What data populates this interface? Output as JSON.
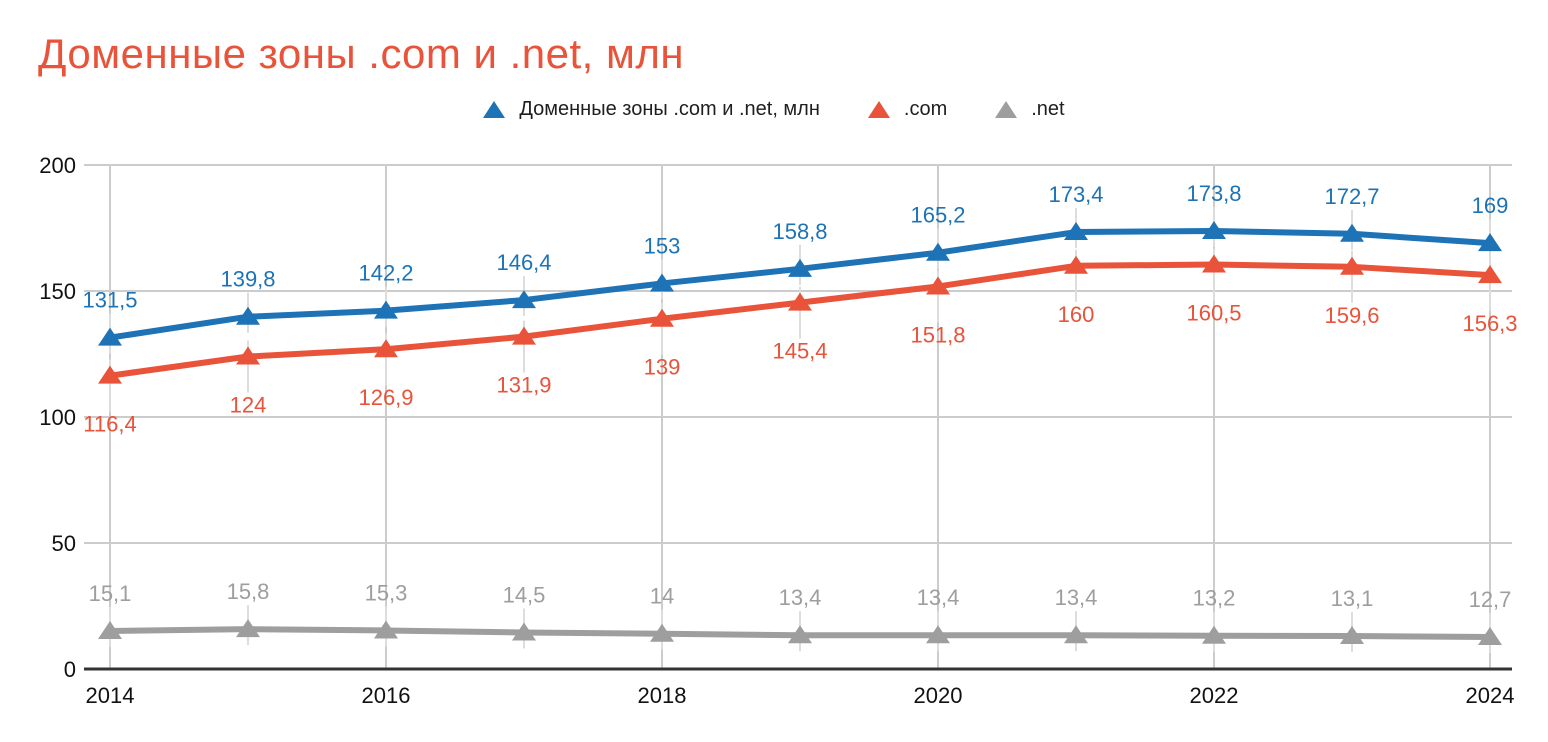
{
  "title": "Доменные зоны .com и .net, млн",
  "legend": [
    {
      "label": "Доменные зоны .com и .net, млн",
      "color": "#1d73b5"
    },
    {
      "label": ".com",
      "color": "#e8533a"
    },
    {
      "label": ".net",
      "color": "#9e9e9e"
    }
  ],
  "colors": {
    "title": "#e8533a",
    "gridline": "#cccccc",
    "leader_line": "#dddddd",
    "axis_line": "#333333",
    "tick_text": "#111111",
    "legend_text": "#1f1f1f",
    "background": "#ffffff"
  },
  "chart_data": {
    "type": "line",
    "title": "Доменные зоны .com и .net, млн",
    "x": [
      2014,
      2015,
      2016,
      2017,
      2018,
      2019,
      2020,
      2021,
      2022,
      2023,
      2024
    ],
    "x_tick_values": [
      2014,
      2016,
      2018,
      2020,
      2022,
      2024
    ],
    "x_tick_labels": [
      "2014",
      "2016",
      "2018",
      "2020",
      "2022",
      "2024"
    ],
    "y_tick_values": [
      0,
      50,
      100,
      150,
      200
    ],
    "y_tick_labels": [
      "0",
      "50",
      "100",
      "150",
      "200"
    ],
    "ylim": [
      0,
      200
    ],
    "grid": true,
    "legend_position": "top",
    "marker": "triangle-up",
    "series": [
      {
        "id": "total",
        "name": "Доменные зоны .com и .net, млн",
        "color": "#1d73b5",
        "label_position": "above",
        "values": [
          131.5,
          139.8,
          142.2,
          146.4,
          153,
          158.8,
          165.2,
          173.4,
          173.8,
          172.7,
          169
        ],
        "labels": [
          "131,5",
          "139,8",
          "142,2",
          "146,4",
          "153",
          "158,8",
          "165,2",
          "173,4",
          "173,8",
          "172,7",
          "169"
        ]
      },
      {
        "id": "com",
        "name": ".com",
        "color": "#e8533a",
        "label_position": "below",
        "values": [
          116.4,
          124,
          126.9,
          131.9,
          139,
          145.4,
          151.8,
          160,
          160.5,
          159.6,
          156.3
        ],
        "labels": [
          "116,4",
          "124",
          "126,9",
          "131,9",
          "139",
          "145,4",
          "151,8",
          "160",
          "160,5",
          "159,6",
          "156,3"
        ]
      },
      {
        "id": "net",
        "name": ".net",
        "color": "#9e9e9e",
        "label_position": "above",
        "values": [
          15.1,
          15.8,
          15.3,
          14.5,
          14,
          13.4,
          13.4,
          13.4,
          13.2,
          13.1,
          12.7
        ],
        "labels": [
          "15,1",
          "15,8",
          "15,3",
          "14,5",
          "14",
          "13,4",
          "13,4",
          "13,4",
          "13,2",
          "13,1",
          "12,7"
        ]
      }
    ]
  }
}
